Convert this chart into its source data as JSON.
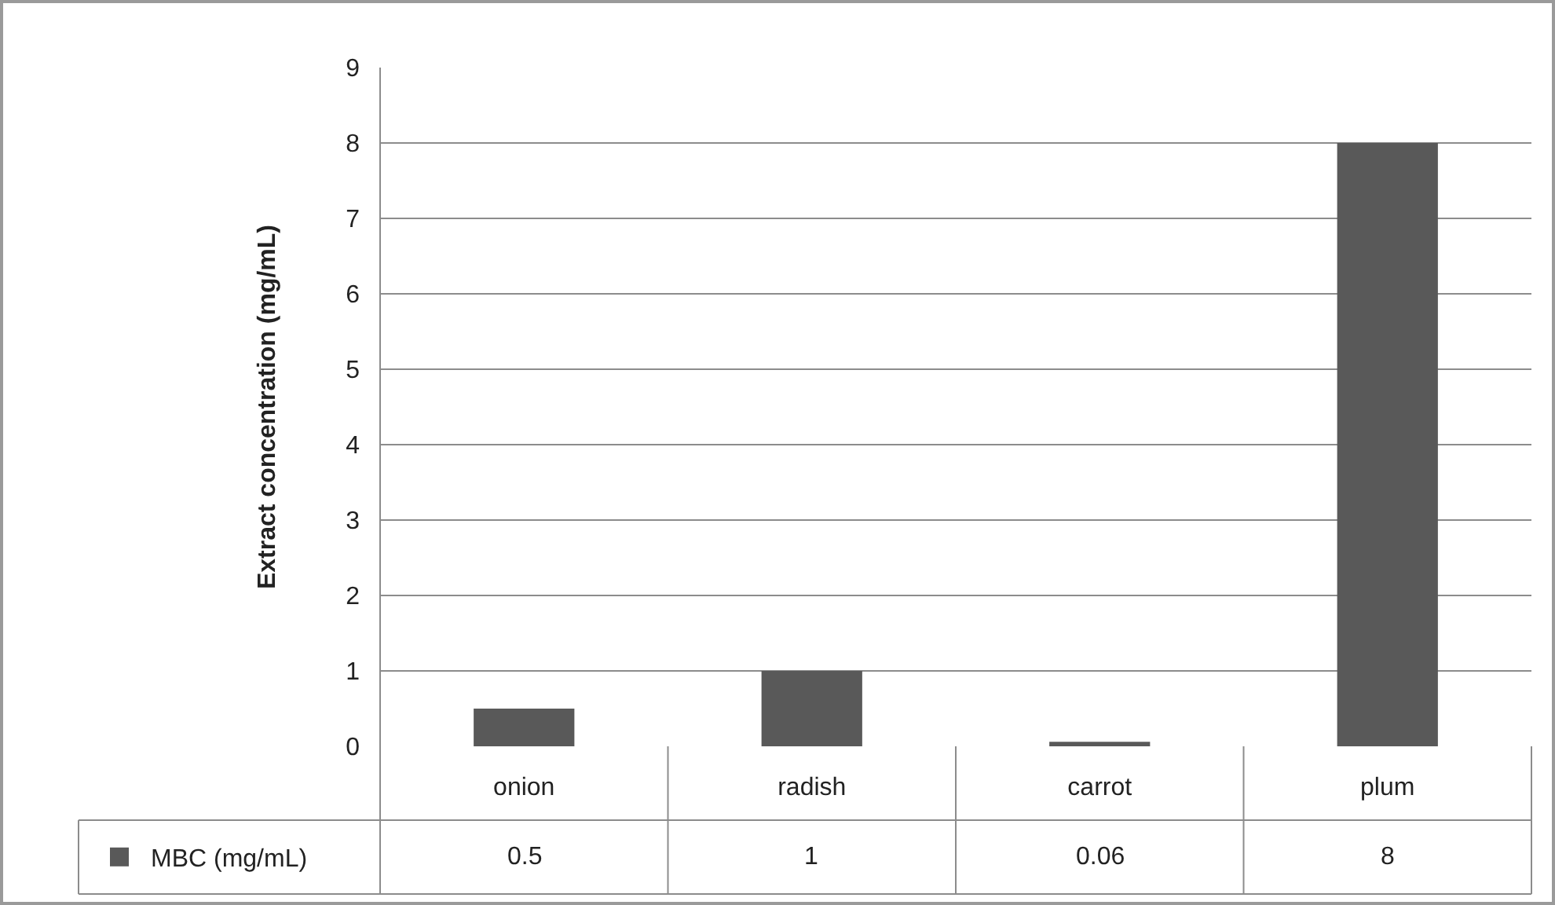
{
  "chart_data": {
    "type": "bar",
    "ylabel": "Extract concentration (mg/mL)",
    "categories": [
      "onion",
      "radish",
      "carrot",
      "plum"
    ],
    "series": [
      {
        "name": "MBC (mg/mL)",
        "color": "#595959",
        "values": [
          0.5,
          1,
          0.06,
          8
        ]
      }
    ],
    "ylim": [
      0,
      9
    ],
    "yticks": [
      0,
      1,
      2,
      3,
      4,
      5,
      6,
      7,
      8,
      9
    ],
    "grid": "y",
    "data_labels": true,
    "legend": "bottom"
  }
}
